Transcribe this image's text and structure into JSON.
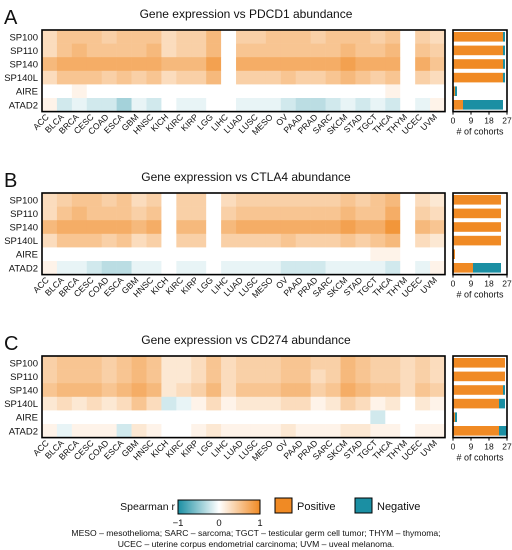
{
  "colors": {
    "positive": "#f08a24",
    "negative": "#1b8fa3",
    "zero": "#ffffff",
    "frame": "#000000"
  },
  "chart_data": [
    {
      "type": "heatmap",
      "panel_letter": "A",
      "title": "Gene expression vs PDCD1 abundance",
      "genes": [
        "SP100",
        "SP110",
        "SP140",
        "SP140L",
        "AIRE",
        "ATAD2"
      ],
      "cohorts": [
        "ACC",
        "BLCA",
        "BRCA",
        "CESC",
        "COAD",
        "ESCA",
        "GBM",
        "HNSC",
        "KICH",
        "KIRC",
        "KIRP",
        "LGG",
        "LIHC",
        "LUAD",
        "LUSC",
        "MESO",
        "OV",
        "PAAD",
        "PRAD",
        "SARC",
        "SKCM",
        "STAD",
        "TGCT",
        "THCA",
        "THYM",
        "UCEC",
        "UVM"
      ],
      "values": [
        [
          0.3,
          0.5,
          0.5,
          0.5,
          0.4,
          0.5,
          0.5,
          0.5,
          0.3,
          0.4,
          0.4,
          0.6,
          0.0,
          0.4,
          0.4,
          0.5,
          0.5,
          0.5,
          0.4,
          0.5,
          0.5,
          0.5,
          0.4,
          0.5,
          0.0,
          0.4,
          0.3
        ],
        [
          0.3,
          0.5,
          0.6,
          0.5,
          0.5,
          0.5,
          0.5,
          0.6,
          0.3,
          0.4,
          0.4,
          0.6,
          0.0,
          0.5,
          0.5,
          0.5,
          0.5,
          0.5,
          0.5,
          0.5,
          0.6,
          0.5,
          0.5,
          0.6,
          0.0,
          0.5,
          0.4
        ],
        [
          0.6,
          0.7,
          0.7,
          0.7,
          0.7,
          0.7,
          0.7,
          0.7,
          0.6,
          0.6,
          0.6,
          0.8,
          0.0,
          0.7,
          0.7,
          0.7,
          0.7,
          0.7,
          0.7,
          0.7,
          0.8,
          0.7,
          0.7,
          0.7,
          0.0,
          0.7,
          0.5
        ],
        [
          0.3,
          0.5,
          0.5,
          0.5,
          0.4,
          0.5,
          0.4,
          0.5,
          0.3,
          0.4,
          0.4,
          0.6,
          0.0,
          0.4,
          0.4,
          0.4,
          0.5,
          0.4,
          0.4,
          0.5,
          0.6,
          0.5,
          0.4,
          0.5,
          0.0,
          0.4,
          0.3
        ],
        [
          0.0,
          0.0,
          0.1,
          0.0,
          0.0,
          0.0,
          0.0,
          0.0,
          0.0,
          0.0,
          0.0,
          0.0,
          0.0,
          0.0,
          0.0,
          0.0,
          0.0,
          0.0,
          0.0,
          0.0,
          0.0,
          0.0,
          0.0,
          0.1,
          0.0,
          0.0,
          0.0
        ],
        [
          0.1,
          -0.2,
          -0.1,
          -0.2,
          -0.2,
          -0.4,
          -0.1,
          -0.2,
          0.0,
          -0.1,
          -0.1,
          0.0,
          0.0,
          -0.1,
          -0.1,
          -0.1,
          -0.2,
          -0.3,
          -0.3,
          -0.2,
          -0.1,
          -0.2,
          -0.1,
          -0.2,
          0.0,
          -0.1,
          0.1
        ]
      ],
      "bars": {
        "xlabel": "# of cohorts",
        "ticks": [
          0,
          9,
          18,
          27
        ],
        "xlim": [
          0,
          27
        ],
        "positive": [
          25,
          25,
          25,
          25,
          1,
          5
        ],
        "negative": [
          1,
          1,
          1,
          1,
          1,
          20
        ]
      }
    },
    {
      "type": "heatmap",
      "panel_letter": "B",
      "title": "Gene expression vs CTLA4 abundance",
      "genes": [
        "SP100",
        "SP110",
        "SP140",
        "SP140L",
        "AIRE",
        "ATAD2"
      ],
      "cohorts": [
        "ACC",
        "BLCA",
        "BRCA",
        "CESC",
        "COAD",
        "ESCA",
        "GBM",
        "HNSC",
        "KICH",
        "KIRC",
        "KIRP",
        "LGG",
        "LIHC",
        "LUAD",
        "LUSC",
        "MESO",
        "OV",
        "PAAD",
        "PRAD",
        "SARC",
        "SKCM",
        "STAD",
        "TGCT",
        "THCA",
        "THYM",
        "UCEC",
        "UVM"
      ],
      "values": [
        [
          0.3,
          0.4,
          0.5,
          0.5,
          0.4,
          0.5,
          0.3,
          0.4,
          0.0,
          0.4,
          0.4,
          0.0,
          0.3,
          0.4,
          0.4,
          0.4,
          0.4,
          0.4,
          0.4,
          0.4,
          0.5,
          0.4,
          0.5,
          0.6,
          0.0,
          0.3,
          0.2
        ],
        [
          0.3,
          0.5,
          0.6,
          0.5,
          0.5,
          0.5,
          0.4,
          0.5,
          0.0,
          0.4,
          0.4,
          0.0,
          0.4,
          0.5,
          0.5,
          0.5,
          0.5,
          0.5,
          0.5,
          0.5,
          0.6,
          0.5,
          0.5,
          0.7,
          0.0,
          0.4,
          0.3
        ],
        [
          0.6,
          0.7,
          0.7,
          0.7,
          0.7,
          0.7,
          0.6,
          0.7,
          0.0,
          0.6,
          0.6,
          0.0,
          0.6,
          0.7,
          0.7,
          0.7,
          0.7,
          0.7,
          0.7,
          0.7,
          0.8,
          0.7,
          0.7,
          0.9,
          0.0,
          0.6,
          0.5
        ],
        [
          0.3,
          0.5,
          0.5,
          0.5,
          0.4,
          0.5,
          0.3,
          0.4,
          0.0,
          0.4,
          0.4,
          0.0,
          0.4,
          0.4,
          0.4,
          0.4,
          0.5,
          0.4,
          0.4,
          0.4,
          0.5,
          0.4,
          0.5,
          0.6,
          0.0,
          0.3,
          0.2
        ],
        [
          0.0,
          0.0,
          0.0,
          0.0,
          0.0,
          0.0,
          0.0,
          0.0,
          0.0,
          0.0,
          0.0,
          0.0,
          0.0,
          0.0,
          0.0,
          0.0,
          0.0,
          0.0,
          0.0,
          0.0,
          0.0,
          0.0,
          0.1,
          0.1,
          0.0,
          0.0,
          0.0
        ],
        [
          0.1,
          -0.1,
          -0.1,
          -0.2,
          -0.3,
          -0.3,
          -0.1,
          -0.1,
          0.0,
          -0.1,
          -0.1,
          0.0,
          -0.1,
          -0.1,
          -0.1,
          -0.1,
          -0.2,
          -0.2,
          -0.2,
          -0.1,
          -0.1,
          -0.1,
          -0.1,
          -0.2,
          0.0,
          -0.1,
          0.1
        ]
      ],
      "bars": {
        "xlabel": "# of cohorts",
        "ticks": [
          0,
          9,
          18,
          27
        ],
        "xlim": [
          0,
          27
        ],
        "positive": [
          24,
          24,
          24,
          24,
          1,
          10
        ],
        "negative": [
          0,
          0,
          0,
          0,
          0,
          14
        ]
      }
    },
    {
      "type": "heatmap",
      "panel_letter": "C",
      "title": "Gene expression vs CD274 abundance",
      "genes": [
        "SP100",
        "SP110",
        "SP140",
        "SP140L",
        "AIRE",
        "ATAD2"
      ],
      "cohorts": [
        "ACC",
        "BLCA",
        "BRCA",
        "CESC",
        "COAD",
        "ESCA",
        "GBM",
        "HNSC",
        "KICH",
        "KIRC",
        "KIRP",
        "LGG",
        "LIHC",
        "LUAD",
        "LUSC",
        "MESO",
        "OV",
        "PAAD",
        "PRAD",
        "SARC",
        "SKCM",
        "STAD",
        "TGCT",
        "THCA",
        "THYM",
        "UCEC",
        "UVM"
      ],
      "values": [
        [
          0.4,
          0.5,
          0.5,
          0.5,
          0.4,
          0.5,
          0.6,
          0.5,
          0.2,
          0.2,
          0.3,
          0.5,
          0.3,
          0.4,
          0.4,
          0.4,
          0.5,
          0.5,
          0.4,
          0.4,
          0.6,
          0.5,
          0.4,
          0.4,
          0.3,
          0.4,
          0.3
        ],
        [
          0.4,
          0.5,
          0.5,
          0.5,
          0.4,
          0.5,
          0.6,
          0.5,
          0.2,
          0.2,
          0.3,
          0.5,
          0.3,
          0.4,
          0.4,
          0.4,
          0.5,
          0.5,
          0.3,
          0.4,
          0.6,
          0.5,
          0.4,
          0.4,
          0.3,
          0.4,
          0.3
        ],
        [
          0.5,
          0.6,
          0.6,
          0.6,
          0.5,
          0.6,
          0.7,
          0.6,
          0.2,
          0.3,
          0.4,
          0.6,
          0.3,
          0.5,
          0.5,
          0.5,
          0.6,
          0.6,
          0.4,
          0.5,
          0.7,
          0.6,
          0.5,
          0.5,
          0.3,
          0.5,
          0.4
        ],
        [
          0.2,
          0.3,
          0.2,
          0.3,
          0.2,
          0.3,
          0.5,
          0.3,
          -0.2,
          -0.1,
          0.1,
          0.3,
          0.1,
          0.2,
          0.2,
          0.2,
          0.3,
          0.3,
          0.1,
          0.2,
          0.4,
          0.3,
          0.1,
          0.2,
          0.0,
          0.2,
          0.1
        ],
        [
          0.0,
          0.0,
          0.0,
          0.0,
          0.0,
          0.0,
          0.0,
          0.0,
          0.0,
          0.0,
          0.0,
          0.0,
          0.0,
          0.0,
          0.0,
          0.0,
          0.0,
          0.0,
          0.0,
          0.0,
          0.0,
          0.0,
          -0.2,
          0.0,
          0.0,
          0.0,
          0.0
        ],
        [
          0.1,
          -0.1,
          0.1,
          0.1,
          0.1,
          -0.2,
          0.2,
          0.1,
          0.0,
          0.0,
          0.1,
          0.2,
          0.1,
          0.1,
          0.1,
          0.1,
          0.2,
          0.1,
          0.1,
          0.1,
          0.2,
          0.2,
          0.1,
          0.1,
          0.0,
          0.1,
          0.1
        ]
      ],
      "bars": {
        "xlabel": "# of cohorts",
        "ticks": [
          0,
          9,
          18,
          27
        ],
        "xlim": [
          0,
          27
        ],
        "positive": [
          26,
          26,
          25,
          23,
          1,
          23
        ],
        "negative": [
          0,
          0,
          1,
          3,
          1,
          4
        ]
      }
    }
  ],
  "legend": {
    "colorbar_label": "Spearman r",
    "colorbar_ticks": [
      "−1",
      "0",
      "1"
    ],
    "positive_label": "Positive",
    "negative_label": "Negative"
  },
  "footnote": {
    "line1": "MESO – mesothelioma; SARC – sarcoma; TGCT – testicular germ cell tumor; THYM – thymoma;",
    "line2": "UCEC – uterine corpus endometrial carcinoma; UVM – uveal melanoma."
  }
}
